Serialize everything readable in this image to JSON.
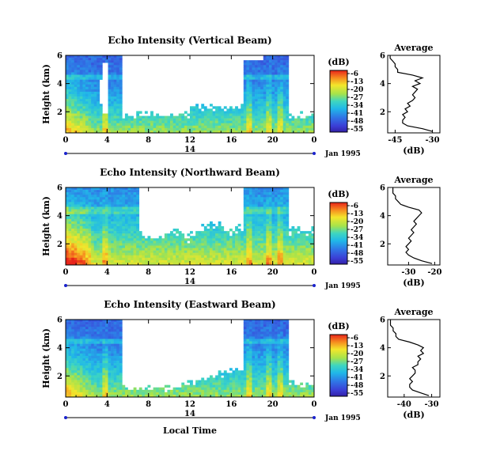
{
  "chart_data": [
    {
      "type": "heatmap",
      "title": "Echo Intensity (Vertical Beam)",
      "ylabel": "Height (km)",
      "x_ticks": [
        "0",
        "4",
        "8",
        "12",
        "16",
        "20",
        "0"
      ],
      "y_ticks": [
        "2",
        "4",
        "6"
      ],
      "ylim": [
        0.5,
        6
      ],
      "date_label": "14",
      "date_suffix": "Jan 1995",
      "colorbar": {
        "unit": "(dB)",
        "ticks": [
          "-6",
          "-13",
          "-20",
          "-27",
          "-34",
          "-41",
          "-48",
          "-55"
        ]
      },
      "average": {
        "title": "Average",
        "xlabel": "(dB)",
        "x_ticks": [
          "-45",
          "-30"
        ],
        "xlim": [
          -48,
          -27
        ],
        "y_ticks": [
          "2",
          "4",
          "6"
        ],
        "ylim": [
          0.5,
          6
        ],
        "profile_height": [
          0.6,
          0.8,
          1.0,
          1.2,
          1.4,
          1.6,
          1.8,
          2.0,
          2.2,
          2.4,
          2.6,
          2.8,
          3.0,
          3.2,
          3.4,
          3.6,
          3.8,
          4.0,
          4.2,
          4.4,
          4.6,
          4.8,
          5.0,
          5.2,
          5.4,
          5.6,
          5.8,
          6.0
        ],
        "profile_db": [
          -30,
          -34,
          -40,
          -42,
          -42,
          -41,
          -42,
          -40,
          -41,
          -39,
          -40,
          -38,
          -37,
          -38,
          -37,
          -36,
          -38,
          -35,
          -37,
          -34,
          -38,
          -44,
          -44,
          -45,
          -45,
          -46,
          -47,
          -47
        ]
      }
    },
    {
      "type": "heatmap",
      "title": "Echo Intensity (Northward Beam)",
      "ylabel": "Height (km)",
      "x_ticks": [
        "0",
        "4",
        "8",
        "12",
        "16",
        "20",
        "0"
      ],
      "y_ticks": [
        "2",
        "4",
        "6"
      ],
      "ylim": [
        0.5,
        6
      ],
      "date_label": "14",
      "date_suffix": "Jan 1995",
      "colorbar": {
        "unit": "(dB)",
        "ticks": [
          "-6",
          "-13",
          "-20",
          "-27",
          "-34",
          "-41",
          "-48",
          "-55"
        ]
      },
      "average": {
        "title": "Average",
        "xlabel": "(dB)",
        "x_ticks": [
          "-30",
          "-20"
        ],
        "xlim": [
          -38,
          -18
        ],
        "y_ticks": [
          "2",
          "4",
          "6"
        ],
        "ylim": [
          0.5,
          6
        ],
        "profile_height": [
          0.6,
          0.8,
          1.0,
          1.2,
          1.4,
          1.6,
          1.8,
          2.0,
          2.2,
          2.4,
          2.6,
          2.8,
          3.0,
          3.2,
          3.4,
          3.6,
          3.8,
          4.0,
          4.2,
          4.4,
          4.6,
          4.8,
          5.0,
          5.2,
          5.4,
          5.6,
          5.8,
          6.0
        ],
        "profile_db": [
          -21,
          -25,
          -28,
          -30,
          -31,
          -30,
          -31,
          -30,
          -29,
          -30,
          -29,
          -28,
          -29,
          -28,
          -27,
          -28,
          -27,
          -26,
          -25,
          -26,
          -30,
          -33,
          -34,
          -35,
          -35,
          -36,
          -36,
          -36
        ]
      }
    },
    {
      "type": "heatmap",
      "title": "Echo Intensity (Eastward Beam)",
      "ylabel": "Height (km)",
      "xlabel": "Local Time",
      "x_ticks": [
        "0",
        "4",
        "8",
        "12",
        "16",
        "20",
        "0"
      ],
      "y_ticks": [
        "2",
        "4",
        "6"
      ],
      "ylim": [
        0.5,
        6
      ],
      "date_label": "14",
      "date_suffix": "Jan 1995",
      "colorbar": {
        "unit": "(dB)",
        "ticks": [
          "-6",
          "-13",
          "-20",
          "-27",
          "-34",
          "-41",
          "-48",
          "-55"
        ]
      },
      "average": {
        "title": "Average",
        "xlabel": "(dB)",
        "x_ticks": [
          "-40",
          "-30"
        ],
        "xlim": [
          -46,
          -27
        ],
        "y_ticks": [
          "2",
          "4",
          "6"
        ],
        "ylim": [
          0.5,
          6
        ],
        "profile_height": [
          0.6,
          0.8,
          1.0,
          1.2,
          1.4,
          1.6,
          1.8,
          2.0,
          2.2,
          2.4,
          2.6,
          2.8,
          3.0,
          3.2,
          3.4,
          3.6,
          3.8,
          4.0,
          4.2,
          4.4,
          4.6,
          4.8,
          5.0,
          5.2,
          5.4,
          5.6,
          5.8,
          6.0
        ],
        "profile_db": [
          -31,
          -34,
          -37,
          -38,
          -38,
          -37,
          -38,
          -37,
          -36,
          -36,
          -37,
          -35,
          -35,
          -34,
          -35,
          -33,
          -34,
          -33,
          -35,
          -38,
          -42,
          -43,
          -43,
          -44,
          -44,
          -45,
          -45,
          -45
        ]
      }
    }
  ]
}
